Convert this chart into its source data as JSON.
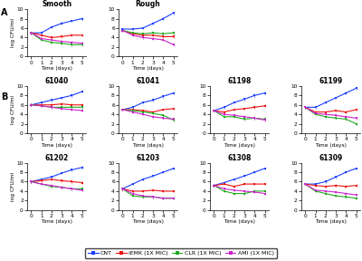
{
  "days": [
    0,
    1,
    2,
    3,
    4,
    5
  ],
  "colors": {
    "CNT": "#1a3eff",
    "iEMK": "#ee1111",
    "CLR": "#22aa22",
    "AMI": "#cc22cc"
  },
  "panel_A": {
    "Smooth": {
      "CNT": [
        5.0,
        5.0,
        6.2,
        7.0,
        7.5,
        8.0
      ],
      "iEMK": [
        5.0,
        4.5,
        4.0,
        4.2,
        4.5,
        4.5
      ],
      "CLR": [
        5.0,
        3.5,
        3.0,
        2.8,
        2.5,
        2.5
      ],
      "AMI": [
        5.0,
        3.8,
        3.5,
        3.2,
        3.0,
        2.8
      ]
    },
    "Rough": {
      "CNT": [
        5.8,
        5.8,
        6.0,
        7.0,
        8.0,
        9.2
      ],
      "iEMK": [
        5.5,
        4.8,
        4.5,
        4.5,
        4.2,
        4.2
      ],
      "CLR": [
        5.5,
        5.0,
        4.8,
        5.0,
        4.8,
        5.0
      ],
      "AMI": [
        5.5,
        4.5,
        4.0,
        3.8,
        3.5,
        2.5
      ]
    }
  },
  "panel_B": {
    "61040": {
      "CNT": [
        6.0,
        6.5,
        7.0,
        7.5,
        8.0,
        8.8
      ],
      "iEMK": [
        6.0,
        6.0,
        6.0,
        6.2,
        6.0,
        6.0
      ],
      "CLR": [
        6.0,
        5.8,
        5.5,
        5.5,
        5.5,
        5.5
      ],
      "AMI": [
        6.0,
        5.8,
        5.5,
        5.2,
        5.0,
        4.8
      ]
    },
    "61041": {
      "CNT": [
        5.0,
        5.5,
        6.5,
        7.0,
        7.8,
        8.5
      ],
      "iEMK": [
        5.0,
        5.0,
        4.8,
        4.5,
        5.0,
        5.2
      ],
      "CLR": [
        5.0,
        4.8,
        4.5,
        4.2,
        3.8,
        2.8
      ],
      "AMI": [
        5.0,
        4.5,
        4.0,
        3.5,
        3.2,
        3.0
      ]
    },
    "61198": {
      "CNT": [
        4.8,
        5.5,
        6.5,
        7.2,
        8.0,
        8.5
      ],
      "iEMK": [
        4.8,
        4.5,
        5.0,
        5.2,
        5.5,
        5.8
      ],
      "CLR": [
        4.8,
        3.5,
        3.5,
        3.0,
        3.2,
        3.0
      ],
      "AMI": [
        4.8,
        4.0,
        3.8,
        3.5,
        3.2,
        2.8
      ]
    },
    "61199": {
      "CNT": [
        5.5,
        5.5,
        6.5,
        7.5,
        8.5,
        9.5
      ],
      "iEMK": [
        5.5,
        4.5,
        4.5,
        4.8,
        4.5,
        5.0
      ],
      "CLR": [
        5.5,
        4.0,
        3.5,
        3.2,
        3.0,
        2.0
      ],
      "AMI": [
        5.5,
        4.2,
        4.0,
        3.8,
        3.5,
        3.2
      ]
    },
    "61202": {
      "CNT": [
        6.0,
        6.5,
        7.0,
        7.8,
        8.5,
        9.0
      ],
      "iEMK": [
        6.0,
        6.2,
        6.5,
        6.2,
        6.0,
        5.8
      ],
      "CLR": [
        6.0,
        5.5,
        5.0,
        4.8,
        4.5,
        4.5
      ],
      "AMI": [
        6.0,
        5.5,
        5.2,
        4.8,
        4.5,
        4.2
      ]
    },
    "61203": {
      "CNT": [
        4.5,
        5.5,
        6.5,
        7.2,
        8.0,
        8.8
      ],
      "iEMK": [
        4.5,
        4.0,
        4.0,
        4.2,
        4.0,
        4.0
      ],
      "CLR": [
        4.5,
        3.0,
        2.8,
        2.8,
        2.5,
        2.5
      ],
      "AMI": [
        4.5,
        3.5,
        3.0,
        2.8,
        2.5,
        2.5
      ]
    },
    "61308": {
      "CNT": [
        5.2,
        5.8,
        6.5,
        7.2,
        8.0,
        8.8
      ],
      "iEMK": [
        5.2,
        5.5,
        5.0,
        5.5,
        5.5,
        5.5
      ],
      "CLR": [
        5.2,
        4.0,
        3.5,
        3.5,
        4.0,
        4.0
      ],
      "AMI": [
        5.2,
        4.5,
        4.2,
        4.0,
        3.8,
        3.5
      ]
    },
    "61309": {
      "CNT": [
        5.5,
        5.5,
        6.0,
        7.0,
        8.0,
        8.8
      ],
      "iEMK": [
        5.5,
        5.2,
        5.0,
        5.2,
        5.0,
        5.2
      ],
      "CLR": [
        5.5,
        4.0,
        3.5,
        3.0,
        2.8,
        2.5
      ],
      "AMI": [
        5.5,
        4.2,
        4.0,
        3.8,
        3.5,
        3.2
      ]
    }
  },
  "legend_labels": [
    "CNT",
    "iEMK (1X MIC)",
    "CLR (1X MIC)",
    "AMI (1X MIC)"
  ],
  "ylim": [
    0,
    10
  ],
  "yticks": [
    0,
    2,
    4,
    6,
    8,
    10
  ],
  "xticks": [
    0,
    1,
    2,
    3,
    4,
    5
  ],
  "ylabel": "log CFU/ml",
  "xlabel": "Time (days)"
}
